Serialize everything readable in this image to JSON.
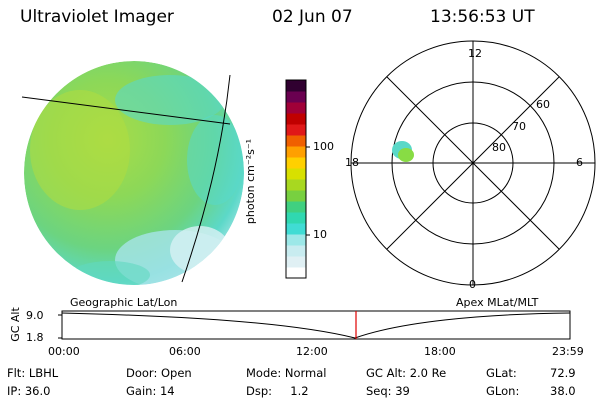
{
  "header": {
    "instrument": "Ultraviolet Imager",
    "date": "02 Jun 07",
    "time": "13:56:53 UT"
  },
  "colorbar": {
    "label": "photon cm⁻²s⁻¹",
    "ticks": [
      "100",
      "10"
    ],
    "colors_bottom_to_top": [
      "#ffffff",
      "#e0f0f4",
      "#c8ecf0",
      "#9ce8e8",
      "#40dcd4",
      "#30d8b0",
      "#40d080",
      "#78d040",
      "#a8d820",
      "#d8e000",
      "#ffd000",
      "#ffa000",
      "#f06000",
      "#e01818",
      "#c00000",
      "#a00038",
      "#6a0050",
      "#300030"
    ]
  },
  "left_image": {
    "caption": "Geographic Lat/Lon",
    "colors": {
      "main": "#86d85a",
      "yellowish": "#b8dc3c",
      "cyan": "#58d8d0",
      "pale": "#c8ecf0"
    }
  },
  "polar_plot": {
    "caption": "Apex MLat/MLT",
    "mlt_labels": {
      "top": "12",
      "bottom": "0",
      "left": "18",
      "right": "6"
    },
    "lat_labels": [
      "60",
      "70",
      "80"
    ],
    "spot_color": "#88dc44"
  },
  "timeline": {
    "axis_label": "GC Alt",
    "y_ticks": [
      "9.0",
      "1.8"
    ],
    "x_ticks": [
      "00:00",
      "06:00",
      "12:00",
      "18:00",
      "23:59"
    ],
    "marker_color": "#e00000"
  },
  "footer": {
    "flt": "Flt: LBHL",
    "ip": "IP: 36.0",
    "door": "Door: Open",
    "gain": "Gain: 14",
    "mode": "Mode: Normal",
    "dsp": "Dsp:     1.2",
    "gc_alt": "GC Alt: 2.0 Re",
    "seq": "Seq: 39",
    "glat_label": "GLat:",
    "glat_value": "72.9",
    "glon_label": "GLon:",
    "glon_value": "38.0"
  }
}
